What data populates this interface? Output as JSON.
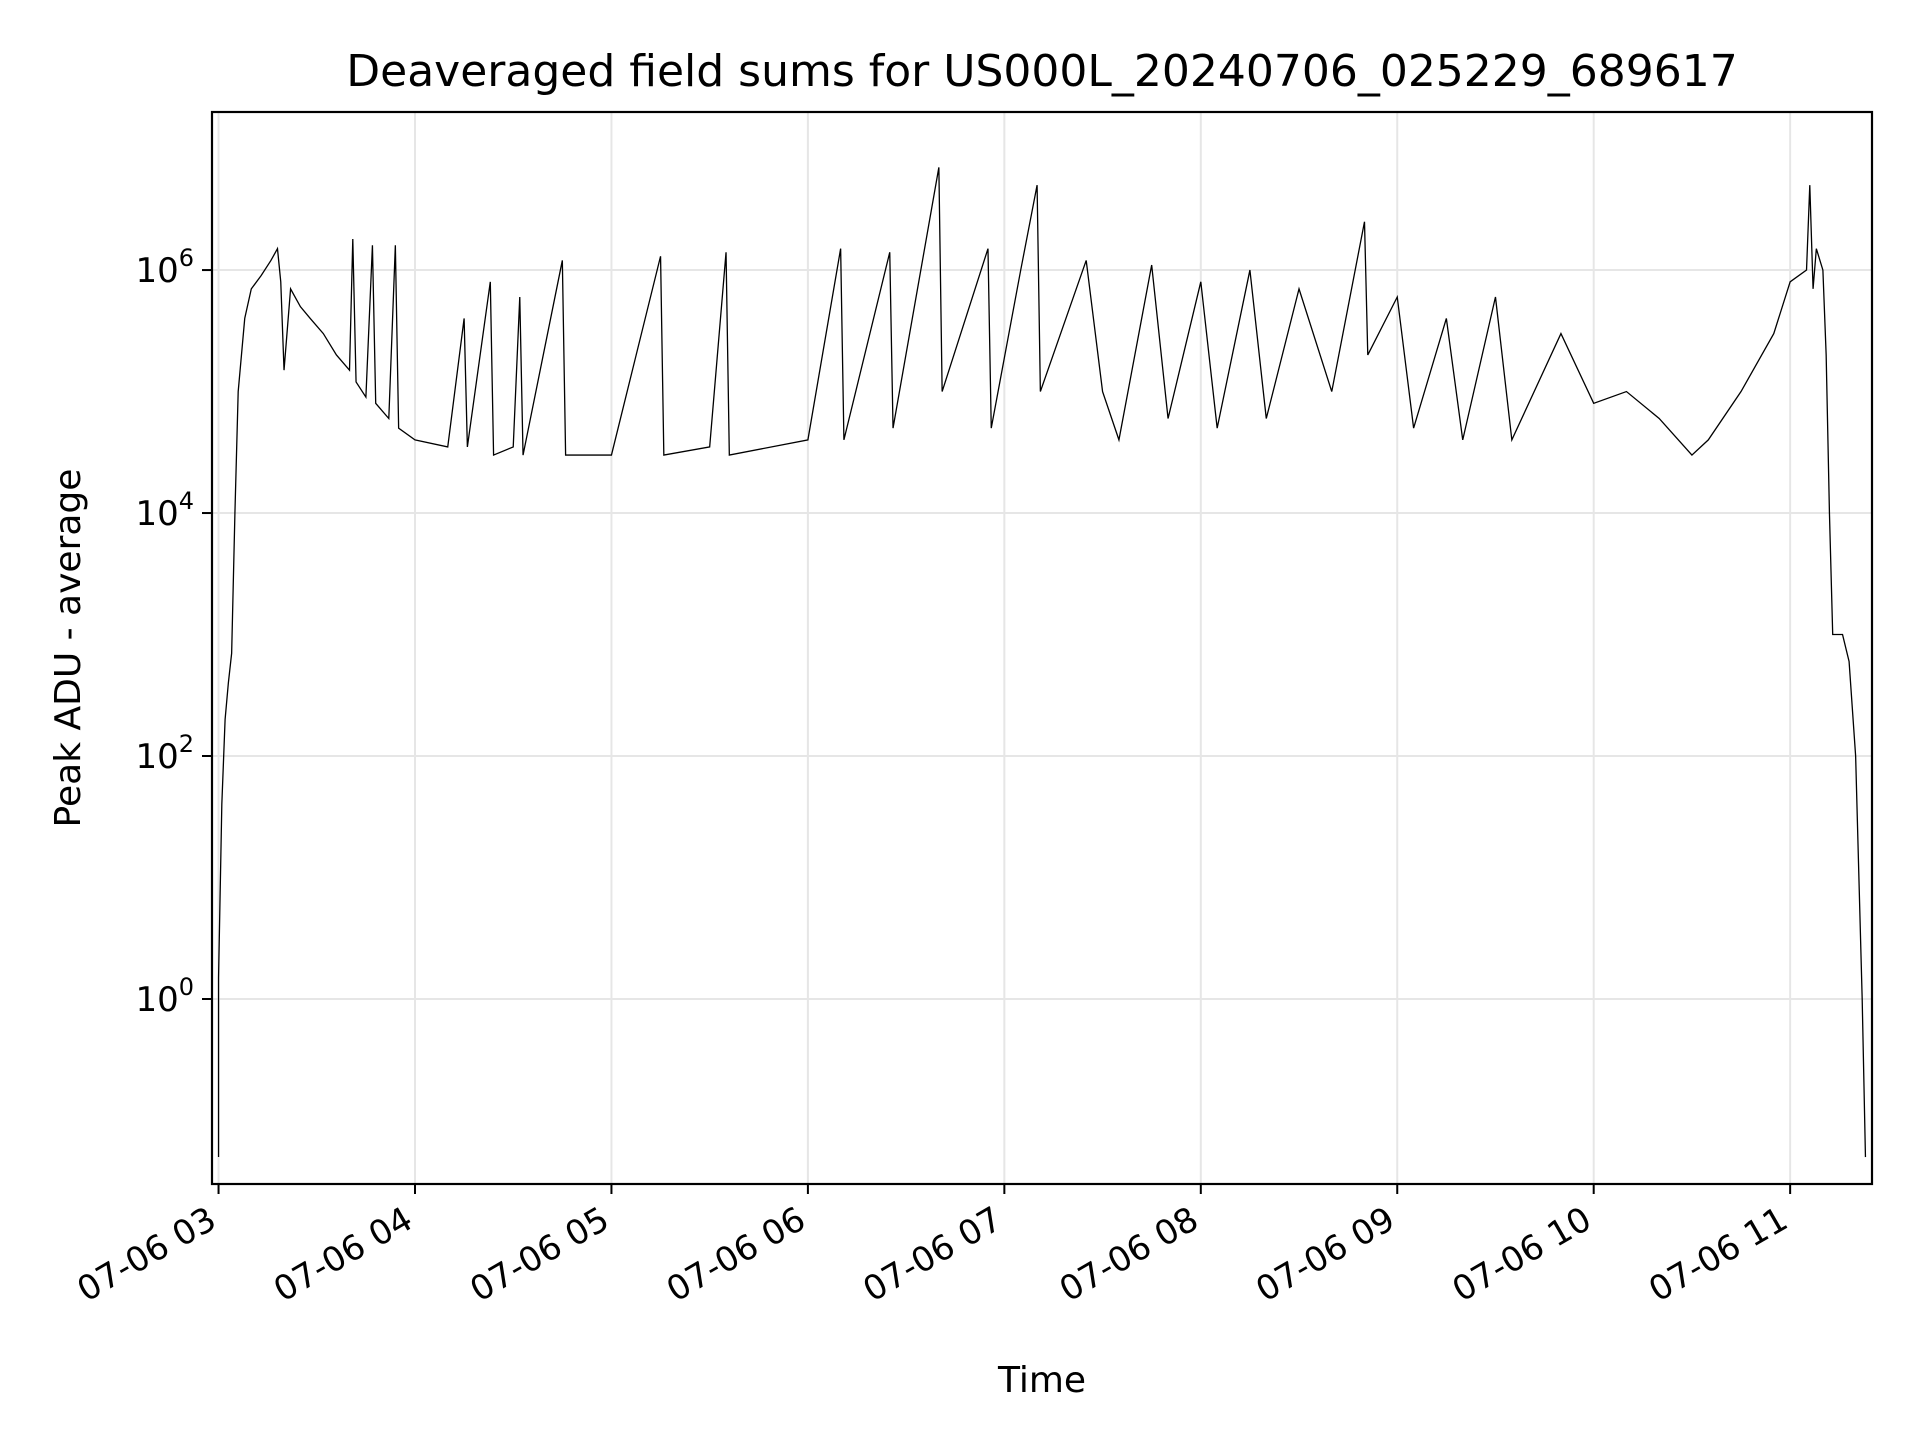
{
  "chart_data": {
    "type": "line",
    "title": "Deaveraged field sums for US000L_20240706_025229_689617",
    "xlabel": "Time",
    "ylabel": "Peak ADU - average",
    "yscale": "log",
    "grid": true,
    "xlim": [
      "2024-07-06 02:58",
      "2024-07-06 11:25"
    ],
    "ylim": [
      0.03,
      20000000
    ],
    "x_ticks": [
      {
        "value": "2024-07-06 03:00",
        "label": "07-06 03"
      },
      {
        "value": "2024-07-06 04:00",
        "label": "07-06 04"
      },
      {
        "value": "2024-07-06 05:00",
        "label": "07-06 05"
      },
      {
        "value": "2024-07-06 06:00",
        "label": "07-06 06"
      },
      {
        "value": "2024-07-06 07:00",
        "label": "07-06 07"
      },
      {
        "value": "2024-07-06 08:00",
        "label": "07-06 08"
      },
      {
        "value": "2024-07-06 09:00",
        "label": "07-06 09"
      },
      {
        "value": "2024-07-06 10:00",
        "label": "07-06 10"
      },
      {
        "value": "2024-07-06 11:00",
        "label": "07-06 11"
      }
    ],
    "y_ticks": [
      {
        "value": 1,
        "base": "10",
        "exp": "0"
      },
      {
        "value": 100,
        "base": "10",
        "exp": "2"
      },
      {
        "value": 10000,
        "base": "10",
        "exp": "4"
      },
      {
        "value": 1000000,
        "base": "10",
        "exp": "6"
      }
    ],
    "series": [
      {
        "color": "#000000",
        "points": [
          [
            "2024-07-06 03:00",
            0.05
          ],
          [
            "2024-07-06 03:00",
            1.5
          ],
          [
            "2024-07-06 03:01",
            40
          ],
          [
            "2024-07-06 03:02",
            200
          ],
          [
            "2024-07-06 03:03",
            400
          ],
          [
            "2024-07-06 03:04",
            700
          ],
          [
            "2024-07-06 03:05",
            10000
          ],
          [
            "2024-07-06 03:06",
            100000
          ],
          [
            "2024-07-06 03:08",
            400000
          ],
          [
            "2024-07-06 03:10",
            700000
          ],
          [
            "2024-07-06 03:13",
            900000
          ],
          [
            "2024-07-06 03:16",
            1200000
          ],
          [
            "2024-07-06 03:18",
            1500000
          ],
          [
            "2024-07-06 03:19",
            800000
          ],
          [
            "2024-07-06 03:20",
            150000
          ],
          [
            "2024-07-06 03:22",
            700000
          ],
          [
            "2024-07-06 03:25",
            500000
          ],
          [
            "2024-07-06 03:28",
            400000
          ],
          [
            "2024-07-06 03:32",
            300000
          ],
          [
            "2024-07-06 03:36",
            200000
          ],
          [
            "2024-07-06 03:40",
            150000
          ],
          [
            "2024-07-06 03:41",
            1800000
          ],
          [
            "2024-07-06 03:42",
            120000
          ],
          [
            "2024-07-06 03:45",
            90000
          ],
          [
            "2024-07-06 03:47",
            1600000
          ],
          [
            "2024-07-06 03:48",
            80000
          ],
          [
            "2024-07-06 03:52",
            60000
          ],
          [
            "2024-07-06 03:54",
            1600000
          ],
          [
            "2024-07-06 03:55",
            50000
          ],
          [
            "2024-07-06 04:00",
            40000
          ],
          [
            "2024-07-06 04:10",
            35000
          ],
          [
            "2024-07-06 04:15",
            400000
          ],
          [
            "2024-07-06 04:16",
            35000
          ],
          [
            "2024-07-06 04:23",
            800000
          ],
          [
            "2024-07-06 04:24",
            30000
          ],
          [
            "2024-07-06 04:30",
            35000
          ],
          [
            "2024-07-06 04:32",
            600000
          ],
          [
            "2024-07-06 04:33",
            30000
          ],
          [
            "2024-07-06 04:45",
            1200000
          ],
          [
            "2024-07-06 04:46",
            30000
          ],
          [
            "2024-07-06 05:00",
            30000
          ],
          [
            "2024-07-06 05:15",
            1300000
          ],
          [
            "2024-07-06 05:16",
            30000
          ],
          [
            "2024-07-06 05:30",
            35000
          ],
          [
            "2024-07-06 05:35",
            1400000
          ],
          [
            "2024-07-06 05:36",
            30000
          ],
          [
            "2024-07-06 06:00",
            40000
          ],
          [
            "2024-07-06 06:10",
            1500000
          ],
          [
            "2024-07-06 06:11",
            40000
          ],
          [
            "2024-07-06 06:25",
            1400000
          ],
          [
            "2024-07-06 06:26",
            50000
          ],
          [
            "2024-07-06 06:40",
            7000000
          ],
          [
            "2024-07-06 06:41",
            100000
          ],
          [
            "2024-07-06 06:55",
            1500000
          ],
          [
            "2024-07-06 06:56",
            50000
          ],
          [
            "2024-07-06 07:05",
            1000000
          ],
          [
            "2024-07-06 07:10",
            5000000
          ],
          [
            "2024-07-06 07:11",
            100000
          ],
          [
            "2024-07-06 07:25",
            1200000
          ],
          [
            "2024-07-06 07:30",
            100000
          ],
          [
            "2024-07-06 07:35",
            40000
          ],
          [
            "2024-07-06 07:45",
            1100000
          ],
          [
            "2024-07-06 07:50",
            60000
          ],
          [
            "2024-07-06 08:00",
            800000
          ],
          [
            "2024-07-06 08:05",
            50000
          ],
          [
            "2024-07-06 08:15",
            1000000
          ],
          [
            "2024-07-06 08:20",
            60000
          ],
          [
            "2024-07-06 08:30",
            700000
          ],
          [
            "2024-07-06 08:40",
            100000
          ],
          [
            "2024-07-06 08:50",
            2500000
          ],
          [
            "2024-07-06 08:51",
            200000
          ],
          [
            "2024-07-06 09:00",
            600000
          ],
          [
            "2024-07-06 09:05",
            50000
          ],
          [
            "2024-07-06 09:15",
            400000
          ],
          [
            "2024-07-06 09:20",
            40000
          ],
          [
            "2024-07-06 09:30",
            600000
          ],
          [
            "2024-07-06 09:35",
            40000
          ],
          [
            "2024-07-06 09:50",
            300000
          ],
          [
            "2024-07-06 10:00",
            80000
          ],
          [
            "2024-07-06 10:10",
            100000
          ],
          [
            "2024-07-06 10:20",
            60000
          ],
          [
            "2024-07-06 10:30",
            30000
          ],
          [
            "2024-07-06 10:35",
            40000
          ],
          [
            "2024-07-06 10:45",
            100000
          ],
          [
            "2024-07-06 10:55",
            300000
          ],
          [
            "2024-07-06 11:00",
            800000
          ],
          [
            "2024-07-06 11:05",
            1000000
          ],
          [
            "2024-07-06 11:06",
            5000000
          ],
          [
            "2024-07-06 11:07",
            700000
          ],
          [
            "2024-07-06 11:08",
            1500000
          ],
          [
            "2024-07-06 11:10",
            1000000
          ],
          [
            "2024-07-06 11:11",
            200000
          ],
          [
            "2024-07-06 11:12",
            10000
          ],
          [
            "2024-07-06 11:13",
            1000
          ],
          [
            "2024-07-06 11:16",
            1000
          ],
          [
            "2024-07-06 11:18",
            600
          ],
          [
            "2024-07-06 11:20",
            100
          ],
          [
            "2024-07-06 11:22",
            1
          ],
          [
            "2024-07-06 11:23",
            0.05
          ]
        ]
      }
    ]
  }
}
